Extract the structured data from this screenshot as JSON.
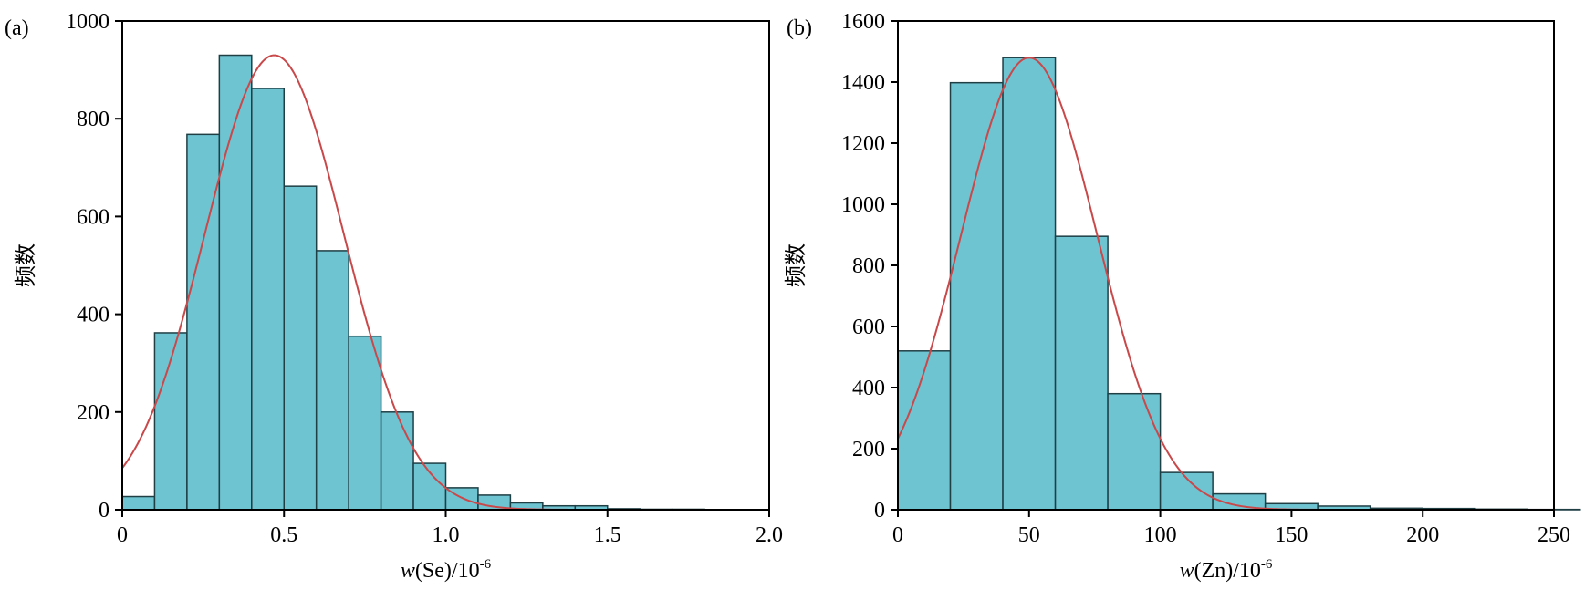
{
  "colors": {
    "bar_fill": "#6fc4d2",
    "bar_edge": "#1f3f45",
    "curve": "#c9484a",
    "axis": "#000000"
  },
  "chart_data": [
    {
      "type": "bar",
      "panel_label": "(a)",
      "title": "",
      "xlabel_prefix": "w",
      "xlabel_rest": "(Se)/10",
      "xlabel_exp": "-6",
      "ylabel": "频数",
      "xlim": [
        0,
        2.0
      ],
      "ylim": [
        0,
        1000
      ],
      "xticks": [
        0,
        0.5,
        1.0,
        1.5,
        2.0
      ],
      "xtick_labels": [
        "0",
        "0.5",
        "1.0",
        "1.5",
        "2.0"
      ],
      "yticks": [
        0,
        200,
        400,
        600,
        800,
        1000
      ],
      "ytick_labels": [
        "0",
        "200",
        "400",
        "600",
        "800",
        "1000"
      ],
      "bin_width": 0.1,
      "bin_edges_start": [
        0,
        0.1,
        0.2,
        0.3,
        0.4,
        0.5,
        0.6,
        0.7,
        0.8,
        0.9,
        1.0,
        1.1,
        1.2,
        1.3,
        1.4,
        1.5,
        1.6,
        1.7,
        1.8,
        1.9
      ],
      "values": [
        27,
        362,
        768,
        930,
        862,
        662,
        530,
        355,
        200,
        95,
        45,
        30,
        14,
        8,
        8,
        2,
        1,
        1,
        0,
        0
      ],
      "fit": {
        "kind": "normal",
        "peak_x": 0.47,
        "peak_y": 930,
        "sigma": 0.215
      },
      "grid": false,
      "legend": "none"
    },
    {
      "type": "bar",
      "panel_label": "(b)",
      "title": "",
      "xlabel_prefix": "w",
      "xlabel_rest": "(Zn)/10",
      "xlabel_exp": "-6",
      "ylabel": "频数",
      "xlim": [
        0,
        250
      ],
      "ylim": [
        0,
        1600
      ],
      "xticks": [
        0,
        50,
        100,
        150,
        200,
        250
      ],
      "xtick_labels": [
        "0",
        "50",
        "100",
        "150",
        "200",
        "250"
      ],
      "yticks": [
        0,
        200,
        400,
        600,
        800,
        1000,
        1200,
        1400,
        1600
      ],
      "ytick_labels": [
        "0",
        "200",
        "400",
        "600",
        "800",
        "1000",
        "1200",
        "1400",
        "1600"
      ],
      "bin_width": 20,
      "bin_edges_start": [
        0,
        20,
        40,
        60,
        80,
        100,
        120,
        140,
        160,
        180,
        200,
        220,
        240
      ],
      "values": [
        520,
        1398,
        1480,
        895,
        380,
        122,
        52,
        20,
        12,
        5,
        4,
        2,
        1
      ],
      "fit": {
        "kind": "normal",
        "peak_x": 50,
        "peak_y": 1480,
        "sigma": 26
      },
      "grid": false,
      "legend": "none"
    }
  ]
}
